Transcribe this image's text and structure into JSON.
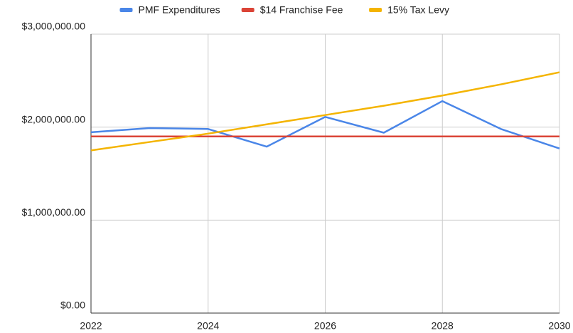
{
  "chart_data": {
    "type": "line",
    "x": [
      2022,
      2023,
      2024,
      2025,
      2026,
      2027,
      2028,
      2029,
      2030
    ],
    "series": [
      {
        "name": "PMF Expenditures",
        "color": "#4a86e8",
        "values": [
          1945000,
          1990000,
          1980000,
          1790000,
          2110000,
          1940000,
          2280000,
          1980000,
          1770000
        ]
      },
      {
        "name": "$14 Franchise Fee",
        "color": "#db4437",
        "values": [
          1900000,
          1900000,
          1900000,
          1900000,
          1900000,
          1900000,
          1900000,
          1900000,
          1900000
        ]
      },
      {
        "name": "15% Tax Levy",
        "color": "#f4b400",
        "values": [
          1750000,
          1840000,
          1930000,
          2030000,
          2130000,
          2230000,
          2340000,
          2460000,
          2590000
        ]
      }
    ],
    "xlim": [
      2022,
      2030
    ],
    "xticks": [
      2022,
      2024,
      2026,
      2028,
      2030
    ],
    "ylim": [
      0,
      3000000
    ],
    "yticks": [
      {
        "value": 0,
        "label": "$0.00"
      },
      {
        "value": 1000000,
        "label": "$1,000,000.00"
      },
      {
        "value": 2000000,
        "label": "$2,000,000.00"
      },
      {
        "value": 3000000,
        "label": "$3,000,000.00"
      }
    ],
    "grid": true,
    "legend": "top"
  }
}
